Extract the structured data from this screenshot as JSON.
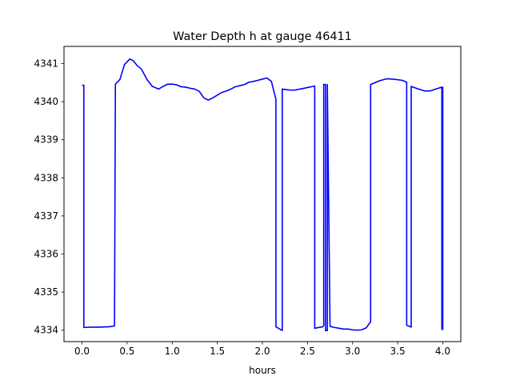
{
  "chart_data": {
    "type": "line",
    "title": "Water Depth h at gauge 46411",
    "xlabel": "hours",
    "ylabel": "",
    "xlim": [
      -0.2,
      4.2
    ],
    "ylim": [
      4333.7,
      4341.45
    ],
    "xticks": [
      0.0,
      0.5,
      1.0,
      1.5,
      2.0,
      2.5,
      3.0,
      3.5,
      4.0
    ],
    "xtick_labels": [
      "0.0",
      "0.5",
      "1.0",
      "1.5",
      "2.0",
      "2.5",
      "3.0",
      "3.5",
      "4.0"
    ],
    "yticks": [
      4334,
      4335,
      4336,
      4337,
      4338,
      4339,
      4340,
      4341
    ],
    "ytick_labels": [
      "4334",
      "4335",
      "4336",
      "4337",
      "4338",
      "4339",
      "4340",
      "4341"
    ],
    "grid": false,
    "legend": false,
    "series": [
      {
        "color": "#0000ff",
        "x": [
          0.0,
          0.02,
          0.02,
          0.1,
          0.2,
          0.3,
          0.36,
          0.37,
          0.42,
          0.47,
          0.53,
          0.57,
          0.61,
          0.66,
          0.72,
          0.78,
          0.85,
          0.9,
          0.95,
          1.0,
          1.05,
          1.1,
          1.15,
          1.2,
          1.25,
          1.3,
          1.35,
          1.4,
          1.45,
          1.5,
          1.55,
          1.6,
          1.65,
          1.7,
          1.75,
          1.8,
          1.85,
          1.9,
          1.95,
          2.0,
          2.05,
          2.1,
          2.15,
          2.15,
          2.22,
          2.22,
          2.28,
          2.35,
          2.42,
          2.5,
          2.58,
          2.58,
          2.67,
          2.68,
          2.68,
          2.7,
          2.7,
          2.72,
          2.72,
          2.75,
          2.8,
          2.85,
          2.9,
          2.95,
          3.0,
          3.05,
          3.1,
          3.15,
          3.2,
          3.2,
          3.3,
          3.38,
          3.45,
          3.55,
          3.6,
          3.6,
          3.65,
          3.65,
          3.72,
          3.8,
          3.86,
          3.92,
          3.99,
          3.99,
          4.0,
          4.0
        ],
        "y": [
          4340.43,
          4340.43,
          4334.07,
          4334.08,
          4334.08,
          4334.09,
          4334.11,
          4340.46,
          4340.58,
          4340.97,
          4341.12,
          4341.07,
          4340.95,
          4340.85,
          4340.58,
          4340.4,
          4340.33,
          4340.4,
          4340.46,
          4340.46,
          4340.44,
          4340.39,
          4340.38,
          4340.35,
          4340.33,
          4340.27,
          4340.1,
          4340.04,
          4340.1,
          4340.17,
          4340.24,
          4340.28,
          4340.33,
          4340.39,
          4340.42,
          4340.45,
          4340.51,
          4340.53,
          4340.56,
          4340.59,
          4340.62,
          4340.53,
          4340.06,
          4334.09,
          4333.99,
          4340.33,
          4340.31,
          4340.3,
          4340.33,
          4340.37,
          4340.41,
          4334.05,
          4334.09,
          4334.12,
          4340.45,
          4340.45,
          4333.99,
          4333.99,
          4340.45,
          4334.1,
          4334.07,
          4334.05,
          4334.03,
          4334.03,
          4334.01,
          4334.0,
          4334.01,
          4334.06,
          4334.22,
          4340.45,
          4340.55,
          4340.6,
          4340.59,
          4340.56,
          4340.51,
          4334.13,
          4334.08,
          4340.4,
          4340.34,
          4340.28,
          4340.28,
          4340.33,
          4340.38,
          4334.02,
          4334.02,
          4340.39
        ]
      }
    ]
  }
}
